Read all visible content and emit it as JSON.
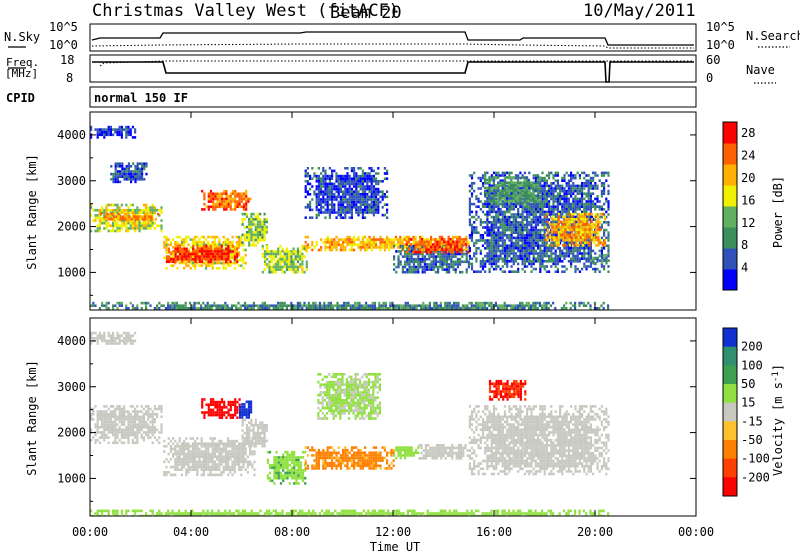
{
  "header": {
    "station": "Christmas Valley West (fitACF)",
    "beam": "Beam 20",
    "date": "10/May/2011"
  },
  "status_panels": {
    "nsky_label": "N.Sky",
    "nsearch_label": "N.Search",
    "noise_tick_high": "10^5",
    "noise_tick_low": "10^0",
    "freq_label_1": "Freq.",
    "freq_label_2": "[MHz]",
    "freq_ticks": [
      "18",
      "8"
    ],
    "nave_label": "Nave",
    "nave_ticks": [
      "60",
      "0"
    ],
    "cpid_label": "CPID",
    "cpid_value": "normal 150 IF"
  },
  "chart_data": [
    {
      "type": "heatmap",
      "panel": "power",
      "xlabel": "Time UT",
      "ylabel": "Slant Range [km]",
      "xlim": [
        0,
        24
      ],
      "ylim": [
        180,
        4500
      ],
      "x_ticks": [
        "00:00",
        "04:00",
        "08:00",
        "12:00",
        "16:00",
        "20:00",
        "00:00"
      ],
      "y_ticks": [
        1000,
        2000,
        3000,
        4000
      ],
      "colorbar": {
        "label": "Power [dB]",
        "ticks": [
          4,
          8,
          12,
          16,
          20,
          24,
          28
        ],
        "range": [
          0,
          30
        ],
        "colors": [
          "#0000ff",
          "#3153b9",
          "#3c8f5b",
          "#60b060",
          "#f0f000",
          "#ffb000",
          "#ff6000",
          "#ff0000"
        ]
      },
      "regions": [
        {
          "t0": 0.0,
          "t1": 2.8,
          "r0": 1900,
          "r1": 2500,
          "value": 16
        },
        {
          "t0": 0.3,
          "t1": 2.7,
          "r0": 2150,
          "r1": 2300,
          "value": 22
        },
        {
          "t0": 0.8,
          "t1": 2.2,
          "r0": 3000,
          "r1": 3400,
          "value": 6
        },
        {
          "t0": 0.0,
          "t1": 1.8,
          "r0": 3950,
          "r1": 4200,
          "value": 4
        },
        {
          "t0": 2.9,
          "t1": 6.2,
          "r0": 1100,
          "r1": 1800,
          "value": 18
        },
        {
          "t0": 3.0,
          "t1": 5.8,
          "r0": 1250,
          "r1": 1600,
          "value": 27
        },
        {
          "t0": 4.4,
          "t1": 6.4,
          "r0": 2350,
          "r1": 2800,
          "value": 24
        },
        {
          "t0": 6.0,
          "t1": 7.0,
          "r0": 1600,
          "r1": 2300,
          "value": 14
        },
        {
          "t0": 6.8,
          "t1": 8.6,
          "r0": 1000,
          "r1": 1600,
          "value": 15
        },
        {
          "t0": 8.5,
          "t1": 15.0,
          "r0": 1500,
          "r1": 1800,
          "value": 20
        },
        {
          "t0": 8.5,
          "t1": 11.8,
          "r0": 2200,
          "r1": 3300,
          "value": 5
        },
        {
          "t0": 12.0,
          "t1": 15.0,
          "r0": 1000,
          "r1": 1600,
          "value": 7
        },
        {
          "t0": 12.5,
          "t1": 15.0,
          "r0": 1450,
          "r1": 1750,
          "value": 25
        },
        {
          "t0": 15.0,
          "t1": 20.5,
          "r0": 1000,
          "r1": 3200,
          "value": 6
        },
        {
          "t0": 15.6,
          "t1": 17.8,
          "r0": 2500,
          "r1": 3100,
          "value": 11
        },
        {
          "t0": 18.0,
          "t1": 20.4,
          "r0": 1600,
          "r1": 2300,
          "value": 21
        },
        {
          "t0": 19.8,
          "t1": 20.5,
          "r0": 1200,
          "r1": 1400,
          "value": 10
        },
        {
          "t0": 0.0,
          "t1": 20.5,
          "r0": 190,
          "r1": 360,
          "value": 9
        }
      ]
    },
    {
      "type": "heatmap",
      "panel": "velocity",
      "xlabel": "Time UT",
      "ylabel": "Slant Range [km]",
      "xlim": [
        0,
        24
      ],
      "ylim": [
        180,
        4500
      ],
      "x_ticks": [
        "00:00",
        "04:00",
        "08:00",
        "12:00",
        "16:00",
        "20:00",
        "00:00"
      ],
      "y_ticks": [
        1000,
        2000,
        3000,
        4000
      ],
      "colorbar": {
        "label": "Velocity [m s^-1]",
        "ticks": [
          200,
          100,
          50,
          15,
          -15,
          -50,
          -100,
          -200
        ],
        "colors": [
          "#1030d0",
          "#2f8f6f",
          "#3da050",
          "#8fe040",
          "#c8c8c0",
          "#ffc030",
          "#ff8000",
          "#ff4000",
          "#ff0000"
        ]
      },
      "regions": [
        {
          "t0": 0.0,
          "t1": 2.8,
          "r0": 1800,
          "r1": 2600,
          "value": 0
        },
        {
          "t0": 0.0,
          "t1": 1.8,
          "r0": 3950,
          "r1": 4200,
          "value": 0
        },
        {
          "t0": 2.9,
          "t1": 6.5,
          "r0": 1100,
          "r1": 1900,
          "value": 0
        },
        {
          "t0": 4.4,
          "t1": 5.9,
          "r0": 2350,
          "r1": 2750,
          "value": -220
        },
        {
          "t0": 5.9,
          "t1": 6.4,
          "r0": 2350,
          "r1": 2700,
          "value": 220
        },
        {
          "t0": 6.0,
          "t1": 7.0,
          "r0": 1700,
          "r1": 2300,
          "value": 0
        },
        {
          "t0": 7.0,
          "t1": 8.5,
          "r0": 900,
          "r1": 1600,
          "value": 40
        },
        {
          "t0": 8.5,
          "t1": 12.0,
          "r0": 1200,
          "r1": 1700,
          "value": -60
        },
        {
          "t0": 12.0,
          "t1": 13.0,
          "r0": 1450,
          "r1": 1700,
          "value": 30
        },
        {
          "t0": 13.0,
          "t1": 15.0,
          "r0": 1450,
          "r1": 1750,
          "value": 0
        },
        {
          "t0": 9.0,
          "t1": 11.5,
          "r0": 2300,
          "r1": 3300,
          "value": 20
        },
        {
          "t0": 15.0,
          "t1": 20.5,
          "r0": 1100,
          "r1": 2600,
          "value": 0
        },
        {
          "t0": 15.8,
          "t1": 17.2,
          "r0": 2750,
          "r1": 3150,
          "value": -200
        },
        {
          "t0": 0.0,
          "t1": 20.5,
          "r0": 190,
          "r1": 320,
          "value": 30
        }
      ]
    }
  ]
}
